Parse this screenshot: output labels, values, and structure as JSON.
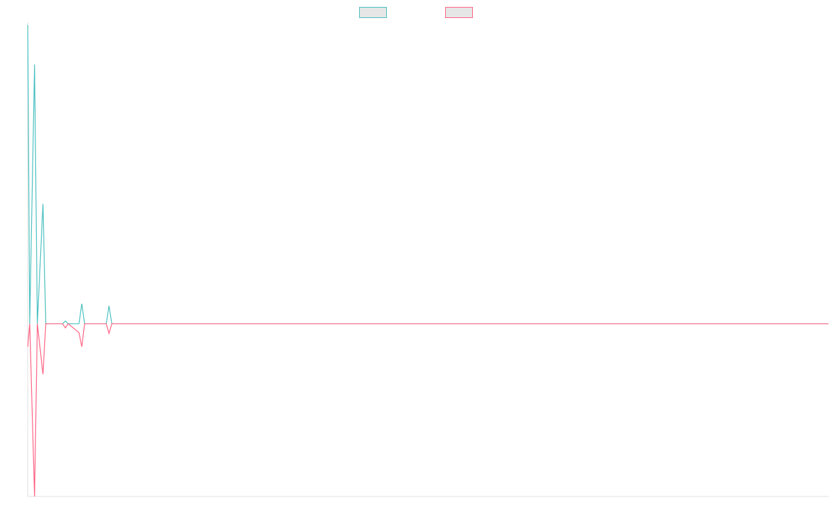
{
  "chart_data": {
    "type": "line",
    "x": [
      0,
      0.5,
      1.7,
      2.4,
      3.8,
      4.5,
      8.7,
      9.4,
      10.1,
      12.8,
      13.5,
      14.2,
      19.6,
      20.3,
      21,
      200
    ],
    "series": [
      {
        "color": "#4bc0c0",
        "values": [
          100,
          0,
          86.8,
          0,
          40.1,
          0,
          0,
          0.9,
          0,
          0,
          6.7,
          0,
          0,
          6,
          0,
          0
        ]
      },
      {
        "color": "#ff6384",
        "values": [
          -7.7,
          0,
          -57.8,
          0,
          -16.9,
          0,
          0,
          -1.4,
          0,
          -3,
          -7.7,
          0,
          0,
          -3.2,
          0,
          0
        ]
      }
    ],
    "xlim": [
      0,
      200
    ],
    "ylim": [
      -57.8,
      100
    ],
    "grid": false
  }
}
